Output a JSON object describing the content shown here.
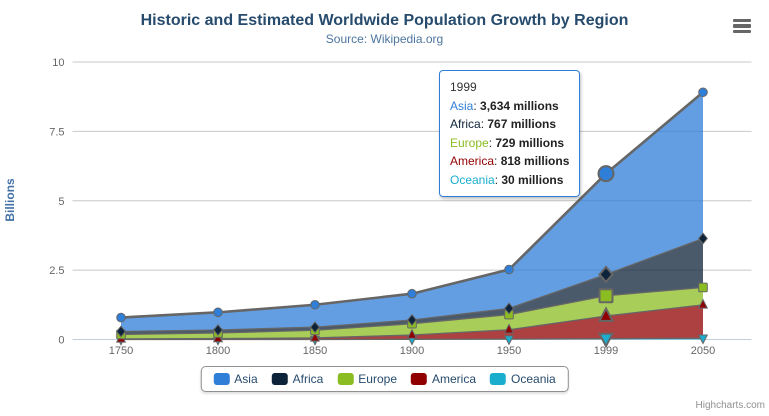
{
  "chart_data": {
    "type": "area",
    "stacking": "normal",
    "title": "Historic and Estimated Worldwide Population Growth by Region",
    "subtitle": "Source: Wikipedia.org",
    "categories": [
      "1750",
      "1800",
      "1850",
      "1900",
      "1950",
      "1999",
      "2050"
    ],
    "series": [
      {
        "name": "Asia",
        "color": "#2f7ed8",
        "marker": "circle",
        "values": [
          502,
          635,
          809,
          947,
          1402,
          3634,
          5268
        ]
      },
      {
        "name": "Africa",
        "color": "#0d233a",
        "marker": "diamond",
        "values": [
          106,
          107,
          111,
          133,
          221,
          767,
          1766
        ]
      },
      {
        "name": "Europe",
        "color": "#8bbc21",
        "marker": "square",
        "values": [
          163,
          203,
          276,
          408,
          547,
          729,
          628
        ]
      },
      {
        "name": "America",
        "color": "#910000",
        "marker": "triangle",
        "values": [
          18,
          31,
          54,
          156,
          339,
          818,
          1201
        ]
      },
      {
        "name": "Oceania",
        "color": "#1aadce",
        "marker": "triangle-down",
        "values": [
          2,
          2,
          2,
          6,
          13,
          30,
          46
        ]
      }
    ],
    "values_unit": "millions",
    "xlabel": "",
    "ylabel": "Billions",
    "yticks": [
      0,
      2.5,
      5,
      7.5,
      10
    ],
    "ylim": [
      0,
      10
    ],
    "grid": true,
    "legend_position": "bottom",
    "hover": {
      "category": "1999",
      "index": 5
    }
  },
  "tooltip": {
    "header": "1999",
    "rows": [
      {
        "label": "Asia",
        "value": "3,634 millions"
      },
      {
        "label": "Africa",
        "value": "767 millions"
      },
      {
        "label": "Europe",
        "value": "729 millions"
      },
      {
        "label": "America",
        "value": "818 millions"
      },
      {
        "label": "Oceania",
        "value": "30 millions"
      }
    ]
  },
  "credits": {
    "label": "Highcharts.com"
  },
  "colors": {
    "title_text": "#274b6d",
    "subtitle_text": "#4d759e",
    "axis_label": "#666666",
    "yaxis_title": "#4572a7",
    "series_line": "#666666",
    "grid_line": "#c8c8c8",
    "axis_line": "#c0d0e0",
    "legend_text": "#274b6d",
    "tooltip_border": "#2f7ed8",
    "fill_opacity": "0.75"
  }
}
